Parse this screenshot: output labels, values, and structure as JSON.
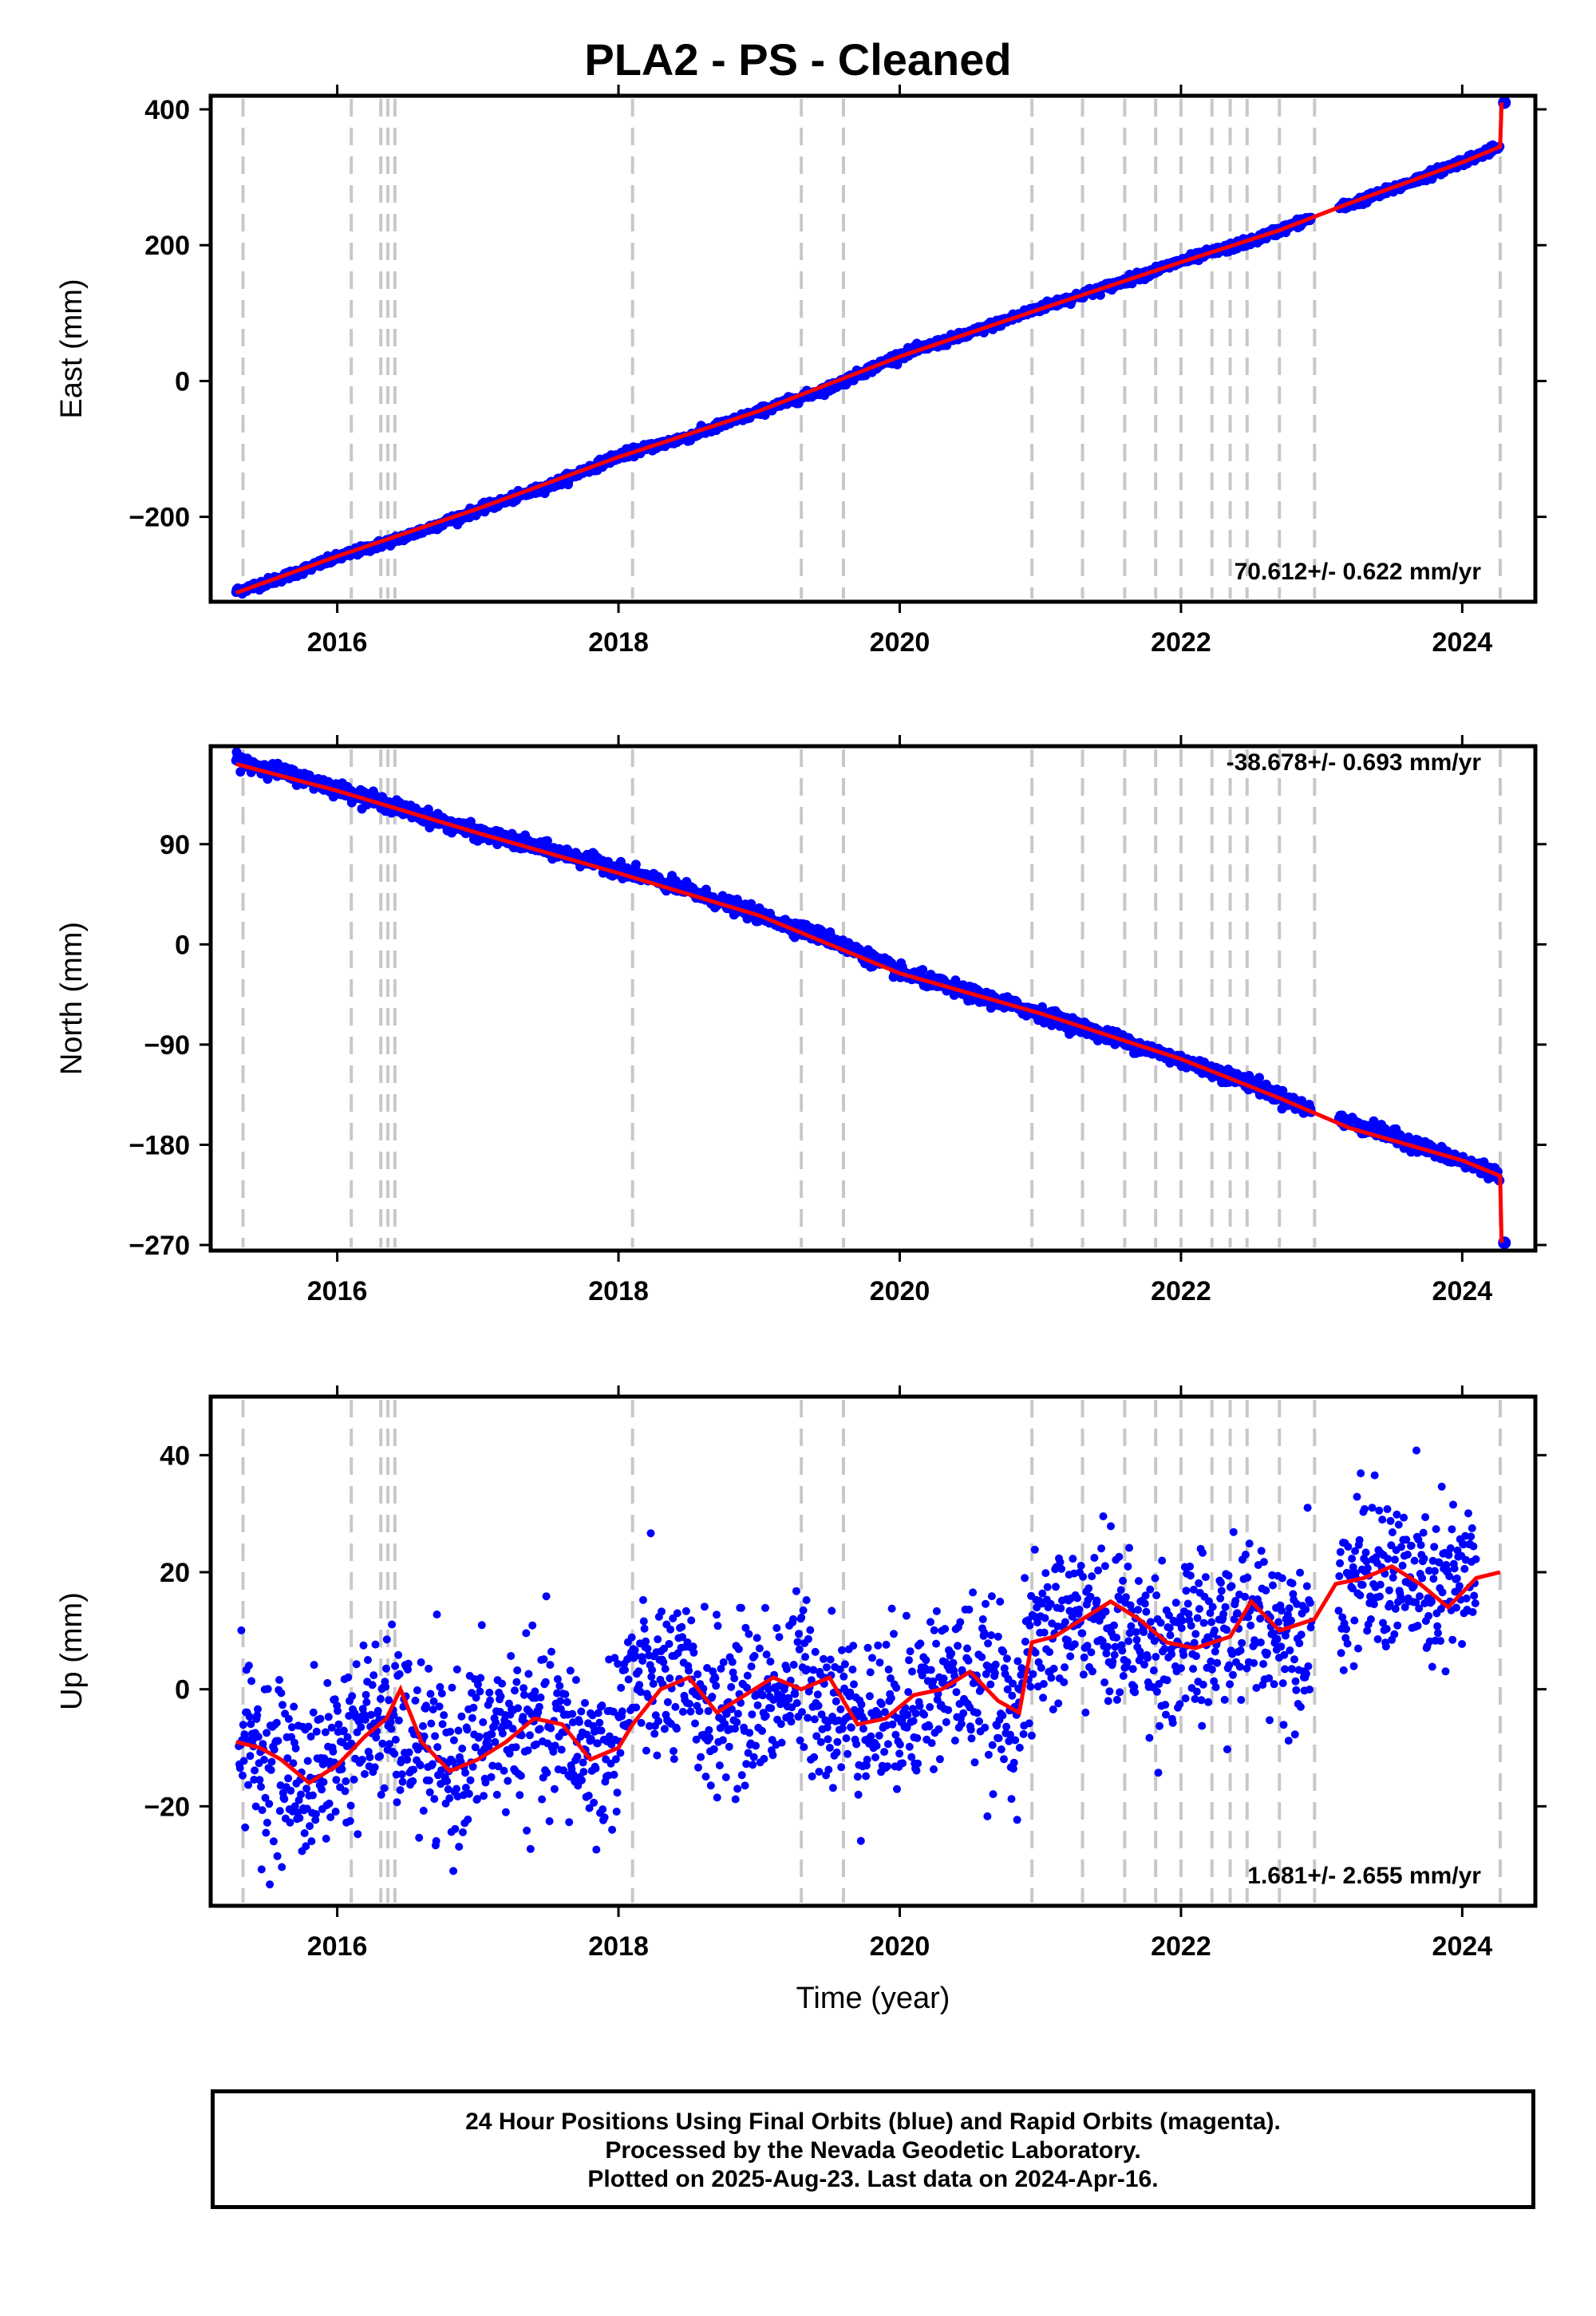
{
  "title": "PLA2  - PS - Cleaned",
  "colors": {
    "final_orbits": "#0000ff",
    "model": "#ff0000",
    "rapid_orbits": "#ff00ff",
    "event_lines": "#c8c8c8"
  },
  "footer": {
    "line1": "24 Hour Positions Using Final Orbits (blue) and Rapid Orbits (magenta).",
    "line2": "Processed by the Nevada Geodetic Laboratory.",
    "line3": "Plotted on 2025-Aug-23. Last data on 2024-Apr-16."
  },
  "chart_data": [
    {
      "type": "scatter",
      "panel": "east",
      "title": "PLA2  - PS - Cleaned",
      "xlabel": "",
      "ylabel": "East (mm)",
      "xlim": [
        2015.1,
        2024.52
      ],
      "ylim": [
        -325,
        420
      ],
      "xticks": [
        "2016",
        "2018",
        "2020",
        "2022",
        "2024"
      ],
      "yticks": [
        "400",
        "200",
        "0",
        "−200"
      ],
      "ytick_values": [
        400,
        200,
        0,
        -200
      ],
      "rate_text": "70.612+/- 0.622 mm/yr",
      "event_lines": [
        2015.33,
        2016.1,
        2016.31,
        2016.36,
        2016.41,
        2018.1,
        2019.3,
        2019.6,
        2020.94,
        2021.3,
        2021.6,
        2021.82,
        2022.0,
        2022.22,
        2022.35,
        2022.47,
        2022.7,
        2022.95,
        2024.27
      ],
      "series": [
        {
          "name": "Final Orbits",
          "x": [
            2015.28,
            2015.6,
            2016.0,
            2016.5,
            2017.0,
            2017.5,
            2018.0,
            2018.5,
            2019.0,
            2019.5,
            2020.0,
            2020.5,
            2021.0,
            2021.5,
            2022.0,
            2022.5,
            2022.9,
            2023.5,
            2024.0,
            2024.27,
            2024.3
          ],
          "y": [
            -310,
            -290,
            -260,
            -228,
            -190,
            -155,
            -110,
            -82,
            -45,
            -10,
            38,
            70,
            108,
            140,
            176,
            206,
            238,
            282,
            323,
            345,
            410
          ]
        },
        {
          "name": "Model",
          "x": [
            2015.28,
            2016.0,
            2017.0,
            2018.0,
            2019.0,
            2020.0,
            2021.0,
            2022.0,
            2022.7,
            2023.2,
            2024.0,
            2024.27,
            2024.28
          ],
          "y": [
            -312,
            -258,
            -188,
            -112,
            -44,
            36,
            106,
            175,
            222,
            262,
            322,
            345,
            410
          ]
        }
      ]
    },
    {
      "type": "scatter",
      "panel": "north",
      "title": "",
      "xlabel": "",
      "ylabel": "North (mm)",
      "xlim": [
        2015.1,
        2024.52
      ],
      "ylim": [
        -275,
        178
      ],
      "xticks": [
        "2016",
        "2018",
        "2020",
        "2022",
        "2024"
      ],
      "yticks": [
        "90",
        "0",
        "−90",
        "−180",
        "−270"
      ],
      "ytick_values": [
        90,
        0,
        -90,
        -180,
        -270
      ],
      "rate_text": "-38.678+/- 0.693 mm/yr",
      "event_lines": [
        2015.33,
        2016.1,
        2016.31,
        2016.36,
        2016.41,
        2018.1,
        2019.3,
        2019.6,
        2020.94,
        2021.3,
        2021.6,
        2021.82,
        2022.0,
        2022.22,
        2022.35,
        2022.47,
        2022.7,
        2022.95,
        2024.27
      ],
      "series": [
        {
          "name": "Final Orbits",
          "x": [
            2015.28,
            2015.6,
            2016.0,
            2016.5,
            2017.0,
            2017.5,
            2018.0,
            2018.5,
            2019.0,
            2019.5,
            2020.0,
            2020.5,
            2021.0,
            2021.5,
            2022.0,
            2022.5,
            2022.9,
            2023.5,
            2024.0,
            2024.27,
            2024.3
          ],
          "y": [
            165,
            155,
            140,
            120,
            100,
            85,
            68,
            48,
            26,
            5,
            -25,
            -44,
            -62,
            -83,
            -104,
            -125,
            -148,
            -172,
            -195,
            -207,
            -268
          ]
        },
        {
          "name": "Model",
          "x": [
            2015.28,
            2016.0,
            2017.0,
            2018.0,
            2019.0,
            2020.0,
            2021.0,
            2022.0,
            2022.7,
            2023.2,
            2024.0,
            2024.27,
            2024.28
          ],
          "y": [
            162,
            138,
            100,
            64,
            26,
            -26,
            -62,
            -103,
            -138,
            -165,
            -194,
            -208,
            -268
          ]
        }
      ]
    },
    {
      "type": "scatter",
      "panel": "up",
      "title": "",
      "xlabel": "Time (year)",
      "ylabel": "Up (mm)",
      "xlim": [
        2015.1,
        2024.52
      ],
      "ylim": [
        -37,
        50
      ],
      "xticks": [
        "2016",
        "2018",
        "2020",
        "2022",
        "2024"
      ],
      "yticks": [
        "40",
        "20",
        "0",
        "−20"
      ],
      "ytick_values": [
        40,
        20,
        0,
        -20
      ],
      "rate_text": "1.681+/- 2.655 mm/yr",
      "event_lines": [
        2015.33,
        2016.1,
        2016.31,
        2016.36,
        2016.41,
        2018.1,
        2019.3,
        2019.6,
        2020.94,
        2021.3,
        2021.6,
        2021.82,
        2022.0,
        2022.22,
        2022.35,
        2022.47,
        2022.7,
        2022.95,
        2024.27
      ],
      "series": [
        {
          "name": "Final Orbits",
          "x": [
            2015.3,
            2015.5,
            2015.8,
            2016.0,
            2016.3,
            2016.5,
            2016.8,
            2017.0,
            2017.3,
            2017.6,
            2017.9,
            2018.1,
            2018.4,
            2018.7,
            2019.0,
            2019.3,
            2019.6,
            2019.9,
            2020.2,
            2020.5,
            2020.8,
            2021.0,
            2021.3,
            2021.6,
            2021.9,
            2022.2,
            2022.5,
            2022.8,
            2023.2,
            2023.5,
            2023.8,
            2024.1,
            2024.27
          ],
          "y": [
            -8,
            -12,
            -16,
            -10,
            -5,
            -8,
            -14,
            -9,
            -6,
            -8,
            -12,
            2,
            1,
            -4,
            -2,
            2,
            -4,
            -5,
            0,
            2,
            -4,
            9,
            13,
            10,
            7,
            8,
            12,
            10,
            18,
            20,
            16,
            19,
            20
          ]
        },
        {
          "name": "Model",
          "x": [
            2015.28,
            2015.45,
            2015.6,
            2015.8,
            2016.0,
            2016.2,
            2016.35,
            2016.45,
            2016.6,
            2016.8,
            2017.0,
            2017.2,
            2017.4,
            2017.6,
            2017.8,
            2018.0,
            2018.1,
            2018.3,
            2018.5,
            2018.7,
            2018.9,
            2019.1,
            2019.3,
            2019.5,
            2019.7,
            2019.9,
            2020.1,
            2020.3,
            2020.5,
            2020.7,
            2020.85,
            2020.94,
            2021.1,
            2021.3,
            2021.5,
            2021.7,
            2021.9,
            2022.1,
            2022.35,
            2022.5,
            2022.7,
            2022.95,
            2023.1,
            2023.3,
            2023.5,
            2023.7,
            2023.9,
            2024.1,
            2024.27
          ],
          "y": [
            -9,
            -10,
            -12,
            -16,
            -13,
            -8,
            -5,
            0,
            -9,
            -14,
            -12,
            -9,
            -5,
            -6,
            -12,
            -10,
            -6,
            0,
            2,
            -4,
            -1,
            2,
            0,
            2,
            -6,
            -5,
            -1,
            0,
            3,
            -2,
            -4,
            8,
            9,
            12,
            15,
            12,
            8,
            7,
            9,
            15,
            10,
            12,
            18,
            19,
            21,
            18,
            14,
            19,
            20
          ]
        }
      ]
    }
  ]
}
